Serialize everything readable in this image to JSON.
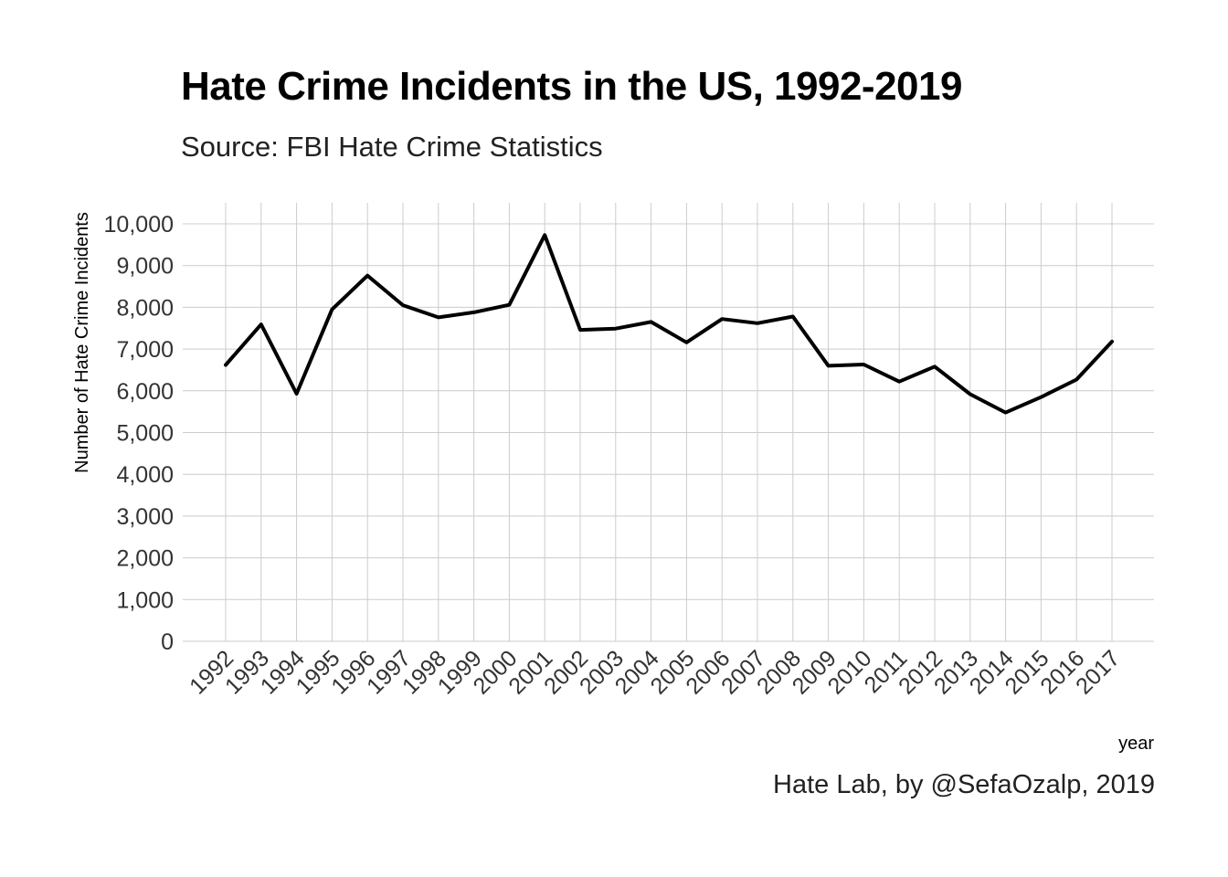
{
  "chart_data": {
    "type": "line",
    "title": "Hate Crime Incidents in the US, 1992-2019",
    "subtitle": "Source: FBI Hate Crime Statistics",
    "caption": "Hate Lab, by @SefaOzalp, 2019",
    "xlabel": "year",
    "ylabel": "Number of Hate Crime Incidents",
    "ylim": [
      0,
      10000
    ],
    "yticks": [
      0,
      1000,
      2000,
      3000,
      4000,
      5000,
      6000,
      7000,
      8000,
      9000,
      10000
    ],
    "ytick_labels": [
      "0",
      "1,000",
      "2,000",
      "3,000",
      "4,000",
      "5,000",
      "6,000",
      "7,000",
      "8,000",
      "9,000",
      "10,000"
    ],
    "x": [
      "1992",
      "1993",
      "1994",
      "1995",
      "1996",
      "1997",
      "1998",
      "1999",
      "2000",
      "2001",
      "2002",
      "2003",
      "2004",
      "2005",
      "2006",
      "2007",
      "2008",
      "2009",
      "2010",
      "2011",
      "2012",
      "2013",
      "2014",
      "2015",
      "2016",
      "2017"
    ],
    "series": [
      {
        "values": [
          6620,
          7590,
          5930,
          7950,
          8760,
          8050,
          7760,
          7880,
          8060,
          9730,
          7460,
          7490,
          7650,
          7160,
          7720,
          7620,
          7780,
          6600,
          6630,
          6220,
          6580,
          5920,
          5480,
          5850,
          6270,
          7180
        ],
        "color": "#000000"
      }
    ],
    "grid": true,
    "line_color": "#000000",
    "grid_color": "#cccccc"
  }
}
